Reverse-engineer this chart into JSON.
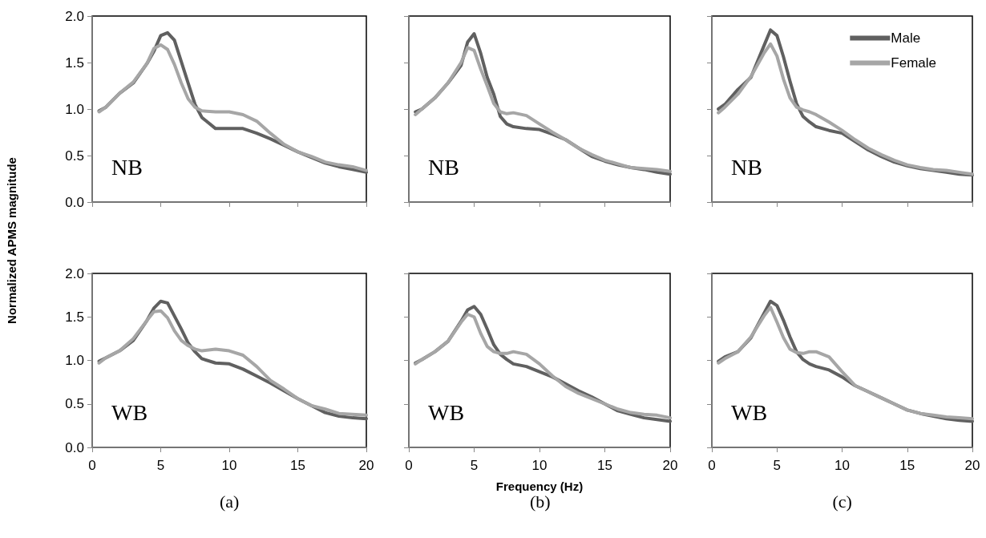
{
  "chart_data": [
    {
      "type": "line",
      "ylabel": "Normalized APMS magnitude",
      "annotations": [
        "NB"
      ],
      "x": [
        0.5,
        1,
        2,
        3,
        4,
        4.5,
        5,
        5.5,
        6,
        6.5,
        7,
        7.5,
        8,
        9,
        10,
        11,
        12,
        13,
        14,
        15,
        16,
        17,
        18,
        19,
        20
      ],
      "xlim": [
        0,
        20
      ],
      "xticks": [
        0,
        5,
        10,
        15,
        20
      ],
      "ylim": [
        0,
        2
      ],
      "yticks": [
        {
          "value": 0,
          "label": "0.0"
        },
        0.5,
        {
          "value": 1,
          "label": "1.0"
        },
        1.5,
        {
          "value": 2,
          "label": "2.0"
        }
      ],
      "tick_labels": "y",
      "grid": false,
      "legend": false,
      "marker": "none",
      "line_style": "solid",
      "series": [
        {
          "color": "#606060",
          "values": [
            0.98,
            1.02,
            1.17,
            1.28,
            1.49,
            1.62,
            1.79,
            1.82,
            1.74,
            1.51,
            1.28,
            1.05,
            0.91,
            0.79,
            0.79,
            0.79,
            0.74,
            0.68,
            0.61,
            0.54,
            0.48,
            0.42,
            0.38,
            0.35,
            0.32
          ]
        },
        {
          "color": "#a6a6a6",
          "values": [
            0.97,
            1.02,
            1.17,
            1.29,
            1.49,
            1.65,
            1.69,
            1.64,
            1.48,
            1.28,
            1.11,
            1.02,
            0.98,
            0.97,
            0.97,
            0.94,
            0.87,
            0.74,
            0.62,
            0.54,
            0.49,
            0.43,
            0.4,
            0.38,
            0.34
          ]
        }
      ]
    },
    {
      "type": "line",
      "annotations": [
        "NB"
      ],
      "x": [
        0.5,
        1,
        2,
        3,
        4,
        4.5,
        5,
        5.5,
        6,
        6.5,
        7,
        7.5,
        8,
        9,
        10,
        11,
        12,
        13,
        14,
        15,
        16,
        17,
        18,
        19,
        20
      ],
      "xlim": [
        0,
        20
      ],
      "xticks": [
        0,
        5,
        10,
        15,
        20
      ],
      "ylim": [
        0,
        2
      ],
      "yticks": [
        0,
        0.5,
        1,
        1.5,
        2
      ],
      "tick_labels": false,
      "grid": false,
      "legend": false,
      "marker": "none",
      "line_style": "solid",
      "series": [
        {
          "color": "#606060",
          "values": [
            0.97,
            1.0,
            1.12,
            1.28,
            1.47,
            1.72,
            1.81,
            1.6,
            1.34,
            1.16,
            0.92,
            0.84,
            0.81,
            0.79,
            0.78,
            0.73,
            0.67,
            0.58,
            0.49,
            0.44,
            0.4,
            0.37,
            0.35,
            0.32,
            0.3
          ]
        },
        {
          "color": "#a6a6a6",
          "values": [
            0.94,
            1.0,
            1.12,
            1.28,
            1.5,
            1.66,
            1.63,
            1.43,
            1.25,
            1.06,
            0.97,
            0.95,
            0.96,
            0.93,
            0.84,
            0.75,
            0.67,
            0.58,
            0.51,
            0.45,
            0.41,
            0.37,
            0.36,
            0.35,
            0.33
          ]
        }
      ]
    },
    {
      "type": "line",
      "annotations": [
        "NB"
      ],
      "x": [
        0.5,
        1,
        2,
        3,
        4,
        4.5,
        5,
        5.5,
        6,
        6.5,
        7,
        7.5,
        8,
        9,
        10,
        11,
        12,
        13,
        14,
        15,
        16,
        17,
        18,
        19,
        20
      ],
      "xlim": [
        0,
        20
      ],
      "xticks": [
        0,
        5,
        10,
        15,
        20
      ],
      "ylim": [
        0,
        2
      ],
      "yticks": [
        0,
        0.5,
        1,
        1.5,
        2
      ],
      "tick_labels": false,
      "grid": false,
      "legend": "top right",
      "marker": "none",
      "line_style": "solid",
      "series": [
        {
          "name": "Male",
          "color": "#606060",
          "values": [
            1.0,
            1.05,
            1.21,
            1.34,
            1.68,
            1.85,
            1.79,
            1.56,
            1.3,
            1.06,
            0.92,
            0.86,
            0.81,
            0.77,
            0.74,
            0.65,
            0.56,
            0.49,
            0.43,
            0.39,
            0.36,
            0.34,
            0.32,
            0.3,
            0.29
          ]
        },
        {
          "name": "Female",
          "color": "#a6a6a6",
          "values": [
            0.96,
            1.02,
            1.16,
            1.35,
            1.6,
            1.7,
            1.57,
            1.32,
            1.12,
            1.02,
            0.99,
            0.97,
            0.94,
            0.86,
            0.77,
            0.67,
            0.58,
            0.51,
            0.45,
            0.4,
            0.37,
            0.35,
            0.34,
            0.32,
            0.3
          ]
        }
      ]
    },
    {
      "type": "line",
      "annotations": [
        "WB",
        "(a)"
      ],
      "x": [
        0.5,
        1,
        2,
        3,
        4,
        4.5,
        5,
        5.5,
        6,
        6.5,
        7,
        7.5,
        8,
        9,
        10,
        11,
        12,
        13,
        14,
        15,
        16,
        17,
        18,
        19,
        20
      ],
      "xlim": [
        0,
        20
      ],
      "xticks": [
        0,
        5,
        10,
        15,
        20
      ],
      "ylim": [
        0,
        2
      ],
      "yticks": [
        {
          "value": 0,
          "label": "0.0"
        },
        0.5,
        {
          "value": 1,
          "label": "1.0"
        },
        1.5,
        {
          "value": 2,
          "label": "2.0"
        }
      ],
      "grid": false,
      "legend": false,
      "marker": "none",
      "line_style": "solid",
      "series": [
        {
          "color": "#606060",
          "values": [
            0.99,
            1.03,
            1.11,
            1.23,
            1.46,
            1.6,
            1.68,
            1.66,
            1.51,
            1.36,
            1.2,
            1.1,
            1.02,
            0.97,
            0.96,
            0.9,
            0.82,
            0.74,
            0.65,
            0.56,
            0.48,
            0.4,
            0.36,
            0.34,
            0.33
          ]
        },
        {
          "color": "#a6a6a6",
          "values": [
            0.97,
            1.03,
            1.11,
            1.25,
            1.46,
            1.56,
            1.57,
            1.49,
            1.34,
            1.23,
            1.17,
            1.13,
            1.11,
            1.13,
            1.11,
            1.06,
            0.93,
            0.77,
            0.67,
            0.56,
            0.48,
            0.44,
            0.39,
            0.38,
            0.37
          ]
        }
      ]
    },
    {
      "type": "line",
      "xlabel": "Frequency (Hz)",
      "annotations": [
        "WB",
        "(b)"
      ],
      "x": [
        0.5,
        1,
        2,
        3,
        4,
        4.5,
        5,
        5.5,
        6,
        6.5,
        7,
        7.5,
        8,
        9,
        10,
        11,
        12,
        13,
        14,
        15,
        16,
        17,
        18,
        19,
        20
      ],
      "xlim": [
        0,
        20
      ],
      "xticks": [
        0,
        5,
        10,
        15,
        20
      ],
      "ylim": [
        0,
        2
      ],
      "yticks": [
        0,
        0.5,
        1,
        1.5,
        2
      ],
      "tick_labels": "x",
      "grid": false,
      "legend": false,
      "marker": "none",
      "line_style": "solid",
      "series": [
        {
          "color": "#606060",
          "values": [
            0.97,
            1.01,
            1.1,
            1.22,
            1.45,
            1.58,
            1.62,
            1.53,
            1.36,
            1.18,
            1.07,
            1.01,
            0.96,
            0.93,
            0.87,
            0.81,
            0.73,
            0.65,
            0.58,
            0.5,
            0.42,
            0.38,
            0.34,
            0.32,
            0.3
          ]
        },
        {
          "color": "#a6a6a6",
          "values": [
            0.96,
            1.01,
            1.1,
            1.22,
            1.44,
            1.53,
            1.5,
            1.31,
            1.16,
            1.1,
            1.08,
            1.08,
            1.1,
            1.07,
            0.96,
            0.82,
            0.7,
            0.62,
            0.56,
            0.5,
            0.44,
            0.4,
            0.38,
            0.37,
            0.34
          ]
        }
      ]
    },
    {
      "type": "line",
      "annotations": [
        "WB",
        "(c)"
      ],
      "x": [
        0.5,
        1,
        2,
        3,
        4,
        4.5,
        5,
        5.5,
        6,
        6.5,
        7,
        7.5,
        8,
        9,
        10,
        11,
        12,
        13,
        14,
        15,
        16,
        17,
        18,
        19,
        20
      ],
      "xlim": [
        0,
        20
      ],
      "xticks": [
        0,
        5,
        10,
        15,
        20
      ],
      "ylim": [
        0,
        2
      ],
      "yticks": [
        0,
        0.5,
        1,
        1.5,
        2
      ],
      "tick_labels": "x",
      "grid": false,
      "legend": false,
      "marker": "none",
      "line_style": "solid",
      "series": [
        {
          "color": "#606060",
          "values": [
            0.99,
            1.04,
            1.1,
            1.26,
            1.54,
            1.68,
            1.63,
            1.46,
            1.27,
            1.1,
            1.01,
            0.96,
            0.93,
            0.89,
            0.81,
            0.71,
            0.64,
            0.57,
            0.5,
            0.43,
            0.39,
            0.36,
            0.33,
            0.31,
            0.3
          ]
        },
        {
          "color": "#a6a6a6",
          "values": [
            0.97,
            1.02,
            1.1,
            1.27,
            1.51,
            1.61,
            1.44,
            1.26,
            1.13,
            1.09,
            1.08,
            1.1,
            1.1,
            1.04,
            0.87,
            0.71,
            0.64,
            0.57,
            0.5,
            0.43,
            0.39,
            0.37,
            0.35,
            0.34,
            0.33
          ]
        }
      ]
    }
  ]
}
